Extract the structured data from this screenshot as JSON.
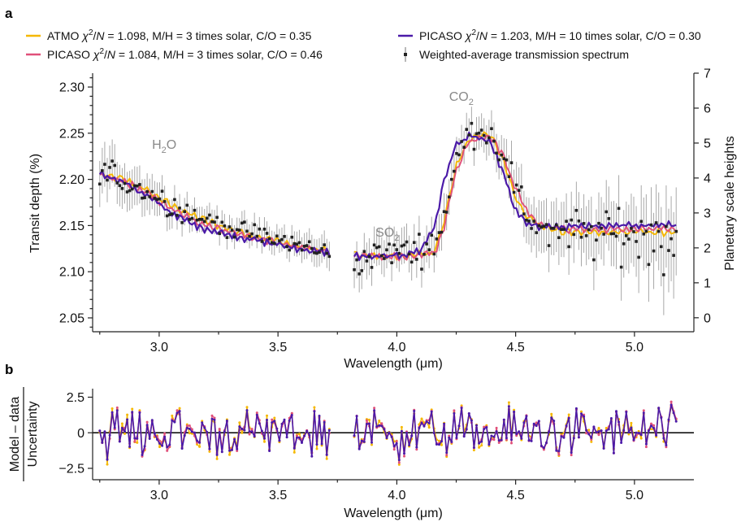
{
  "chart_data": [
    {
      "panel": "a",
      "type": "line",
      "xlabel": "Wavelength (μm)",
      "ylabel": "Transit depth (%)",
      "y2label": "Planetary scale heights",
      "xlim": [
        2.72,
        5.25
      ],
      "ylim": [
        2.035,
        2.315
      ],
      "y2lim": [
        -0.4,
        7.0
      ],
      "xticks": [
        "3.0",
        "3.5",
        "4.0",
        "4.5",
        "5.0"
      ],
      "yticks": [
        "2.05",
        "2.10",
        "2.15",
        "2.20",
        "2.25",
        "2.30"
      ],
      "y2ticks": [
        "0",
        "1",
        "2",
        "3",
        "4",
        "5",
        "6",
        "7"
      ],
      "legend": {
        "placement": "top",
        "entries": [
          {
            "id": "atmo",
            "prefix": "ATMO ",
            "chi": "χ",
            "sup": "2",
            "slash": "/",
            "n": "N",
            "rest": " = 1.098, M/H = 3 times solar, C/O = 0.35",
            "color": "#f5b800"
          },
          {
            "id": "picaso3",
            "prefix": "PICASO ",
            "chi": "χ",
            "sup": "2",
            "slash": "/",
            "n": "N",
            "rest": " = 1.084, M/H = 3 times solar, C/O = 0.46",
            "color": "#e0507a"
          },
          {
            "id": "picaso10",
            "prefix": "PICASO ",
            "chi": "χ",
            "sup": "2",
            "slash": "/",
            "n": "N",
            "rest": " = 1.203, M/H = 10 times solar, C/O = 0.30",
            "color": "#4b1aa8"
          },
          {
            "id": "data",
            "label": "Weighted-average transmission spectrum",
            "color": "#222222"
          }
        ]
      },
      "annotations": [
        {
          "id": "h2o",
          "main": "H",
          "sub": "2",
          "tail": "O",
          "x": 2.97,
          "y": 2.233
        },
        {
          "id": "so2",
          "main": "SO",
          "sub": "2",
          "tail": "",
          "x": 3.91,
          "y": 2.138
        },
        {
          "id": "co2",
          "main": "CO",
          "sub": "2",
          "tail": "",
          "x": 4.22,
          "y": 2.285
        }
      ],
      "model_shape": {
        "wavelength": [
          2.75,
          2.85,
          2.95,
          3.05,
          3.15,
          3.25,
          3.35,
          3.45,
          3.55,
          3.65,
          3.72,
          3.82,
          3.9,
          4.0,
          4.1,
          4.16,
          4.2,
          4.25,
          4.3,
          4.35,
          4.4,
          4.45,
          4.5,
          4.55,
          4.6,
          4.7,
          4.8,
          4.9,
          5.0,
          5.1,
          5.18
        ],
        "atmo": [
          2.205,
          2.2,
          2.188,
          2.172,
          2.16,
          2.15,
          2.142,
          2.136,
          2.13,
          2.125,
          2.123,
          2.118,
          2.117,
          2.117,
          2.118,
          2.122,
          2.155,
          2.215,
          2.242,
          2.25,
          2.245,
          2.22,
          2.18,
          2.16,
          2.15,
          2.143,
          2.143,
          2.143,
          2.143,
          2.143,
          2.143
        ],
        "picaso3": [
          2.203,
          2.198,
          2.185,
          2.168,
          2.155,
          2.147,
          2.14,
          2.134,
          2.128,
          2.124,
          2.122,
          2.117,
          2.116,
          2.116,
          2.118,
          2.12,
          2.15,
          2.21,
          2.24,
          2.247,
          2.245,
          2.225,
          2.19,
          2.165,
          2.152,
          2.146,
          2.146,
          2.146,
          2.146,
          2.146,
          2.146
        ],
        "picaso10": [
          2.207,
          2.197,
          2.182,
          2.164,
          2.15,
          2.143,
          2.137,
          2.132,
          2.127,
          2.122,
          2.121,
          2.117,
          2.116,
          2.117,
          2.123,
          2.15,
          2.2,
          2.238,
          2.246,
          2.245,
          2.237,
          2.205,
          2.165,
          2.152,
          2.148,
          2.148,
          2.15,
          2.15,
          2.15,
          2.15,
          2.15
        ]
      },
      "data_shape": {
        "wavelength": [
          2.75,
          2.85,
          2.95,
          3.05,
          3.15,
          3.25,
          3.35,
          3.45,
          3.55,
          3.65,
          3.72,
          3.82,
          3.9,
          4.0,
          4.1,
          4.16,
          4.2,
          4.25,
          4.3,
          4.35,
          4.4,
          4.45,
          4.5,
          4.55,
          4.6,
          4.7,
          4.8,
          4.9,
          5.0,
          5.1,
          5.18
        ],
        "value": [
          2.21,
          2.198,
          2.188,
          2.172,
          2.16,
          2.152,
          2.144,
          2.138,
          2.131,
          2.124,
          2.12,
          2.108,
          2.118,
          2.122,
          2.125,
          2.13,
          2.16,
          2.22,
          2.25,
          2.255,
          2.248,
          2.225,
          2.185,
          2.16,
          2.15,
          2.14,
          2.142,
          2.14,
          2.14,
          2.14,
          2.135
        ],
        "error": [
          0.025,
          0.022,
          0.02,
          0.016,
          0.014,
          0.013,
          0.013,
          0.013,
          0.013,
          0.015,
          0.016,
          0.02,
          0.02,
          0.02,
          0.02,
          0.02,
          0.02,
          0.018,
          0.018,
          0.018,
          0.02,
          0.022,
          0.025,
          0.025,
          0.028,
          0.03,
          0.032,
          0.035,
          0.038,
          0.042,
          0.048
        ]
      },
      "gap": [
        3.72,
        3.82
      ],
      "x_range": [
        2.75,
        5.18
      ]
    },
    {
      "panel": "b",
      "type": "line",
      "xlabel": "Wavelength (μm)",
      "ylabel_top": "Model – data",
      "ylabel_bottom": "Uncertainty",
      "xlim": [
        2.72,
        5.25
      ],
      "ylim": [
        -3.3,
        3.1
      ],
      "xticks": [
        "3.0",
        "3.5",
        "4.0",
        "4.5",
        "5.0"
      ],
      "yticks": [
        "−2.5",
        "0",
        "2.5"
      ],
      "ytick_values": [
        -2.5,
        0,
        2.5
      ],
      "zero_line": true,
      "residual_spread": 1.2,
      "residual_range": [
        -3.2,
        2.7
      ]
    }
  ],
  "colors": {
    "atmo": "#f5b800",
    "picaso3": "#e0507a",
    "picaso10": "#4b1aa8",
    "data": "#222222",
    "errorbar": "#a8a8a8",
    "zero_line": "#000000"
  }
}
